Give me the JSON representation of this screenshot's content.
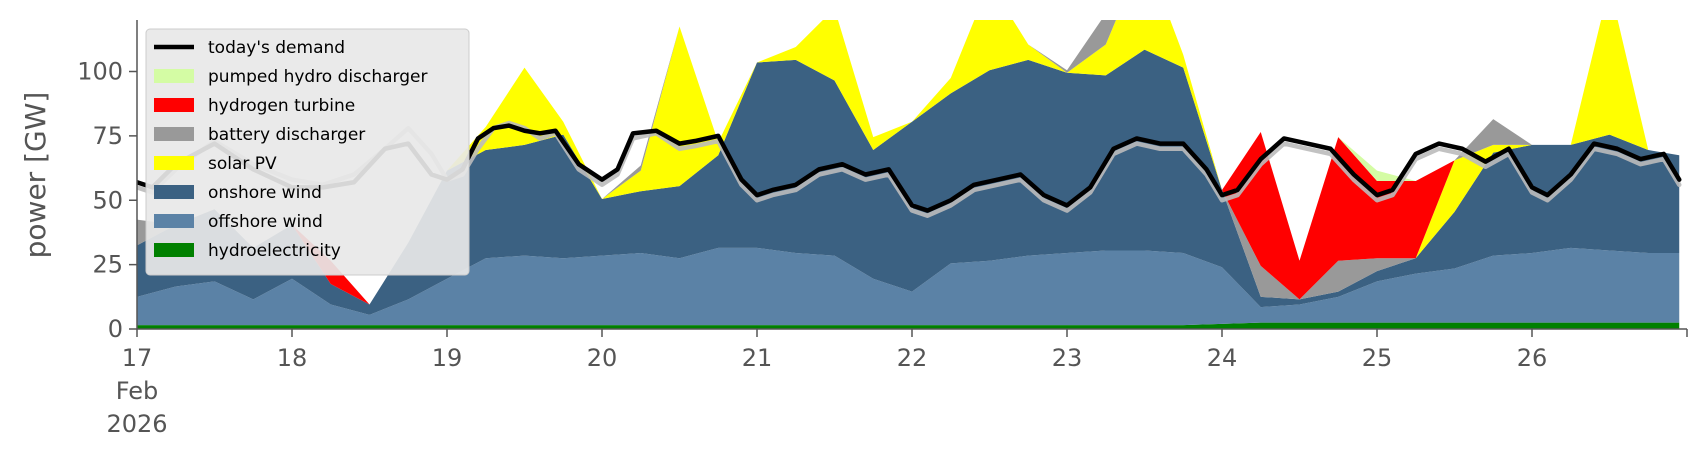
{
  "chart_data": {
    "type": "area",
    "title": "",
    "ylabel": "power [GW]",
    "xlabel": "",
    "ylim": [
      0,
      120
    ],
    "xlim": [
      17,
      27
    ],
    "yticks": [
      0,
      25,
      50,
      75,
      100
    ],
    "xticks": [
      {
        "value": 17,
        "label": "17",
        "sub1": "Feb",
        "sub2": "2026"
      },
      {
        "value": 18,
        "label": "18"
      },
      {
        "value": 19,
        "label": "19"
      },
      {
        "value": 20,
        "label": "20"
      },
      {
        "value": 21,
        "label": "21"
      },
      {
        "value": 22,
        "label": "22"
      },
      {
        "value": 23,
        "label": "23"
      },
      {
        "value": 24,
        "label": "24"
      },
      {
        "value": 25,
        "label": "25"
      },
      {
        "value": 26,
        "label": "26"
      }
    ],
    "legend_position": "top-left",
    "x": [
      17.0,
      17.25,
      17.5,
      17.75,
      18.0,
      18.25,
      18.5,
      18.75,
      19.0,
      19.25,
      19.5,
      19.75,
      20.0,
      20.25,
      20.5,
      20.75,
      21.0,
      21.25,
      21.5,
      21.75,
      22.0,
      22.25,
      22.5,
      22.75,
      23.0,
      23.25,
      23.5,
      23.75,
      24.0,
      24.25,
      24.5,
      24.75,
      25.0,
      25.25,
      25.5,
      25.75,
      26.0,
      26.25,
      26.5,
      26.75,
      26.95
    ],
    "series": [
      {
        "name": "hydroelectricity",
        "color": "#008000",
        "values": [
          1.5,
          1.5,
          1.5,
          1.5,
          1.5,
          1.5,
          1.5,
          1.5,
          1.5,
          1.5,
          1.5,
          1.5,
          1.5,
          1.5,
          1.5,
          1.5,
          1.5,
          1.5,
          1.5,
          1.5,
          1.5,
          1.5,
          1.5,
          1.5,
          1.5,
          1.5,
          1.5,
          1.5,
          2.0,
          2.5,
          2.5,
          2.5,
          2.5,
          2.5,
          2.5,
          2.5,
          2.5,
          2.5,
          2.5,
          2.5,
          2.5
        ]
      },
      {
        "name": "offshore wind",
        "color": "#5b82a6",
        "values": [
          11,
          15,
          17,
          10,
          18,
          8,
          4,
          10,
          18,
          26,
          27,
          26,
          27,
          28,
          26,
          30,
          30,
          28,
          27,
          18,
          13,
          24,
          25,
          27,
          28,
          29,
          29,
          28,
          22,
          6,
          7,
          10,
          16,
          19,
          21,
          26,
          27,
          29,
          28,
          27,
          27
        ]
      },
      {
        "name": "onshore wind",
        "color": "#3b6182",
        "values": [
          20,
          24,
          28,
          20,
          21,
          8,
          4,
          22,
          42,
          42,
          43,
          48,
          22,
          24,
          28,
          36,
          72,
          75,
          68,
          50,
          66,
          66,
          74,
          76,
          70,
          68,
          78,
          72,
          30,
          4,
          2,
          2,
          4,
          6,
          22,
          40,
          42,
          40,
          45,
          40,
          38
        ]
      },
      {
        "name": "solar PV",
        "color": "#ffff00",
        "values": [
          0,
          0,
          0,
          0,
          0,
          0,
          0,
          0,
          0,
          9,
          30,
          5,
          0,
          8,
          62,
          5,
          0,
          5,
          28,
          5,
          0,
          6,
          34,
          6,
          0,
          12,
          38,
          5,
          0,
          0,
          0,
          0,
          0,
          0,
          20,
          3,
          0,
          0,
          58,
          0,
          0
        ]
      },
      {
        "name": "battery discharger",
        "color": "#999999",
        "values": [
          10,
          0,
          0,
          0,
          0,
          0,
          0,
          0,
          0,
          0,
          0,
          0,
          0,
          2,
          0,
          0,
          0,
          0,
          0,
          0,
          0,
          0,
          0,
          0,
          1,
          12,
          0,
          0,
          0,
          12,
          0,
          12,
          5,
          0,
          0,
          10,
          0,
          0,
          0,
          0,
          0
        ]
      },
      {
        "name": "hydrogen turbine",
        "color": "#ff0000",
        "values": [
          0,
          0,
          0,
          0,
          0,
          9,
          0,
          0,
          0,
          0,
          0,
          0,
          0,
          0,
          0,
          0,
          0,
          0,
          0,
          0,
          0,
          0,
          0,
          0,
          0,
          0,
          0,
          0,
          0,
          52,
          15,
          48,
          30,
          30,
          0,
          0,
          0,
          0,
          0,
          0,
          0
        ]
      },
      {
        "name": "pumped hydro discharger",
        "color": "#d4fca4",
        "values": [
          0,
          0,
          0,
          0,
          0,
          0,
          0,
          0,
          0,
          0,
          0,
          0,
          0,
          0,
          0,
          0,
          0,
          0,
          0,
          0,
          0,
          0,
          0,
          0,
          0,
          0,
          0,
          0,
          0,
          0,
          0,
          0,
          4,
          0,
          0,
          0,
          0,
          0,
          0,
          0,
          0
        ]
      }
    ],
    "demand": {
      "name": "today's demand",
      "color": "#000000",
      "x": [
        17.0,
        17.1,
        17.25,
        17.5,
        17.75,
        18.0,
        18.2,
        18.4,
        18.6,
        18.75,
        18.9,
        19.0,
        19.1,
        19.2,
        19.3,
        19.4,
        19.5,
        19.6,
        19.7,
        19.85,
        20.0,
        20.1,
        20.2,
        20.35,
        20.5,
        20.6,
        20.75,
        20.9,
        21.0,
        21.1,
        21.25,
        21.4,
        21.55,
        21.7,
        21.85,
        22.0,
        22.1,
        22.25,
        22.4,
        22.55,
        22.7,
        22.85,
        23.0,
        23.15,
        23.3,
        23.45,
        23.6,
        23.75,
        23.9,
        24.0,
        24.1,
        24.25,
        24.4,
        24.55,
        24.7,
        24.85,
        25.0,
        25.1,
        25.25,
        25.4,
        25.55,
        25.7,
        25.85,
        26.0,
        26.1,
        26.25,
        26.4,
        26.55,
        26.7,
        26.85,
        26.95
      ],
      "values": [
        57,
        55,
        64,
        72,
        62,
        55,
        55,
        57,
        70,
        72,
        60,
        58,
        62,
        74,
        78,
        79,
        77,
        76,
        77,
        64,
        58,
        62,
        76,
        77,
        72,
        73,
        75,
        58,
        52,
        54,
        56,
        62,
        64,
        60,
        62,
        48,
        46,
        50,
        56,
        58,
        60,
        52,
        48,
        55,
        70,
        74,
        72,
        72,
        62,
        52,
        54,
        66,
        74,
        72,
        70,
        60,
        52,
        54,
        68,
        72,
        70,
        65,
        70,
        55,
        52,
        60,
        72,
        70,
        66,
        68,
        58
      ]
    },
    "future_demand": {
      "color": "#bbbbbb",
      "x": [
        17.0,
        17.1,
        17.25,
        17.5,
        17.75,
        18.0,
        18.2,
        18.4,
        18.6,
        18.75,
        18.9,
        19.0,
        19.1,
        19.2,
        19.3,
        19.4,
        19.5,
        19.6,
        19.7,
        19.85,
        20.0,
        20.1,
        20.2,
        20.35,
        20.5,
        20.6,
        20.75,
        20.9,
        21.0,
        21.1,
        21.25,
        21.4,
        21.55,
        21.7,
        21.85,
        22.0,
        22.1,
        22.25,
        22.4,
        22.55,
        22.7,
        22.85,
        23.0,
        23.15,
        23.3,
        23.45,
        23.6,
        23.75,
        23.9,
        24.0,
        24.1,
        24.25,
        24.4,
        24.55,
        24.7,
        24.85,
        25.0,
        25.1,
        25.25,
        25.4,
        25.55,
        25.7,
        25.85,
        26.0,
        26.1,
        26.25,
        26.4,
        26.55,
        26.7,
        26.85,
        26.95
      ],
      "values": [
        55,
        53,
        62,
        73,
        64,
        58,
        56,
        60,
        70,
        78,
        68,
        58,
        60,
        70,
        78,
        80,
        78,
        74,
        76,
        62,
        56,
        60,
        74,
        76,
        70,
        71,
        73,
        56,
        50,
        52,
        54,
        60,
        62,
        58,
        60,
        46,
        44,
        48,
        54,
        56,
        58,
        50,
        46,
        53,
        68,
        72,
        70,
        70,
        60,
        50,
        52,
        64,
        72,
        70,
        68,
        58,
        50,
        52,
        66,
        70,
        68,
        63,
        68,
        53,
        50,
        58,
        70,
        68,
        64,
        66,
        56
      ]
    }
  }
}
